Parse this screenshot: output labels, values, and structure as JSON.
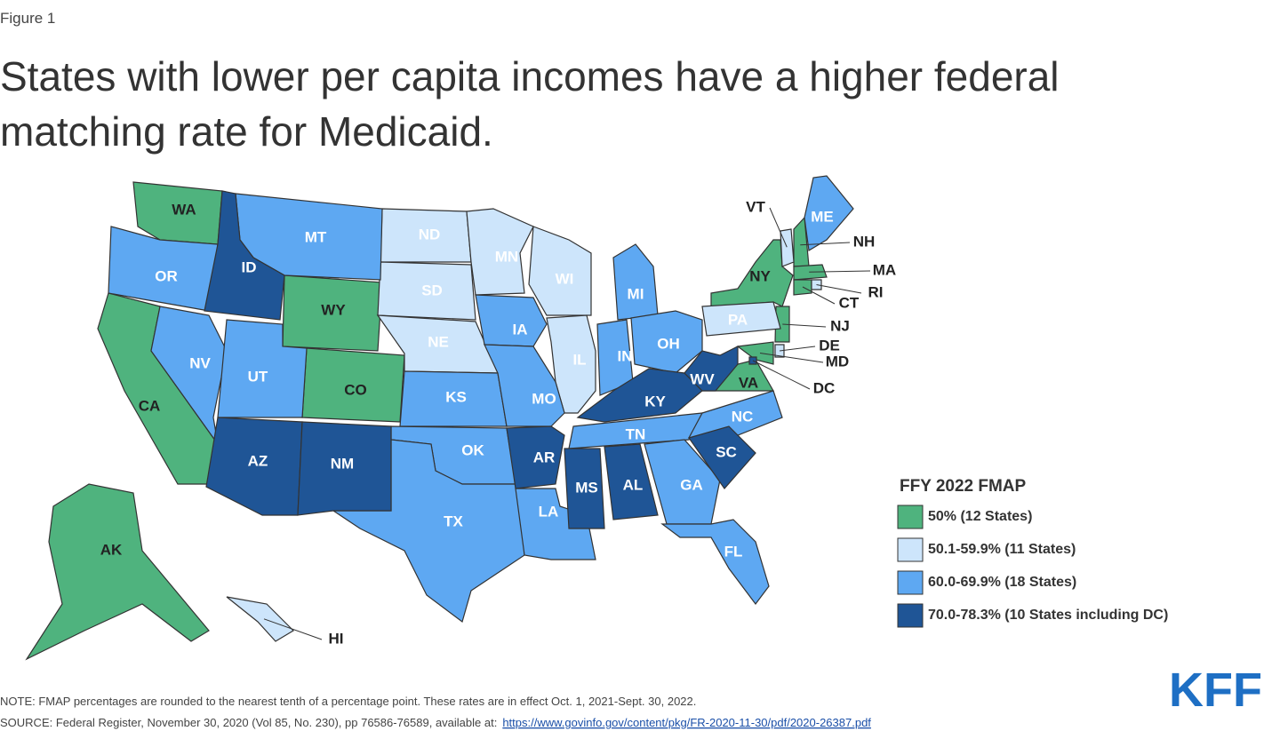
{
  "figure_label": "Figure 1",
  "title": "States with lower per capita incomes have a higher federal matching rate for Medicaid.",
  "legend": {
    "title": "FFY 2022 FMAP",
    "items": [
      {
        "label": "50% (12 States)",
        "color": "#4fb37e",
        "states": [
          "WA",
          "WY",
          "CO",
          "CA",
          "AK",
          "NY",
          "NH",
          "MA",
          "CT",
          "NJ",
          "MD",
          "VA"
        ]
      },
      {
        "label": "50.1-59.9% (11 States)",
        "color": "#cde5fb",
        "states": [
          "ND",
          "SD",
          "NE",
          "MN",
          "WI",
          "IL",
          "PA",
          "VT",
          "HI",
          "DE",
          "RI"
        ]
      },
      {
        "label": "60.0-69.9% (18 States)",
        "color": "#5ea8f2",
        "states": [
          "OR",
          "NV",
          "UT",
          "MT",
          "KS",
          "OK",
          "TX",
          "IA",
          "MO",
          "LA",
          "MI",
          "IN",
          "OH",
          "TN",
          "NC",
          "GA",
          "FL",
          "ME"
        ]
      },
      {
        "label": "70.0-78.3% (10 States including DC)",
        "color": "#1f5596",
        "states": [
          "ID",
          "AZ",
          "NM",
          "AR",
          "MS",
          "AL",
          "KY",
          "WV",
          "SC",
          "DC"
        ]
      }
    ]
  },
  "note": "NOTE: FMAP percentages are rounded to the nearest tenth of a percentage point. These rates are in effect Oct. 1, 2021-Sept. 30, 2022.",
  "source": {
    "text": "SOURCE: Federal Register, November 30, 2020 (Vol 85, No. 230), pp 76586-76589, available at:",
    "link": "https://www.govinfo.gov/content/pkg/FR-2020-11-30/pdf/2020-26387.pdf"
  },
  "logo": "KFF"
}
